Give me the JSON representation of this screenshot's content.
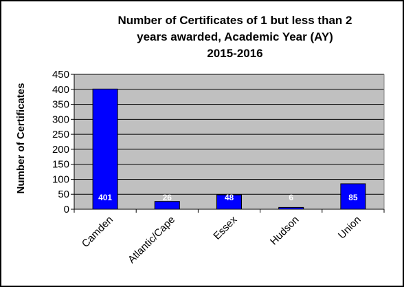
{
  "chart_data": {
    "type": "bar",
    "title_lines": [
      "Number of Certificates of 1 but less than 2",
      "years awarded, Academic Year (AY)",
      "2015-2016"
    ],
    "xlabel": "",
    "ylabel": "Number of Certificates",
    "categories": [
      "Camden",
      "Atlantic/Cape",
      "Essex",
      "Hudson",
      "Union"
    ],
    "values": [
      401,
      26,
      48,
      6,
      85
    ],
    "data_labels": [
      "401",
      "26",
      "48",
      "6",
      "85"
    ],
    "ylim": [
      0,
      450
    ],
    "yticks": [
      0,
      50,
      100,
      150,
      200,
      250,
      300,
      350,
      400,
      450
    ],
    "ytick_labels": [
      "0",
      "50",
      "100",
      "150",
      "200",
      "250",
      "300",
      "350",
      "400",
      "450"
    ],
    "grid": true,
    "legend": "none",
    "colors": {
      "bar_fill": "#0000FF",
      "bar_stroke": "#000000",
      "plot_background": "#C0C0C0",
      "gridline": "#000000",
      "data_label": "#FFFFFF"
    }
  }
}
